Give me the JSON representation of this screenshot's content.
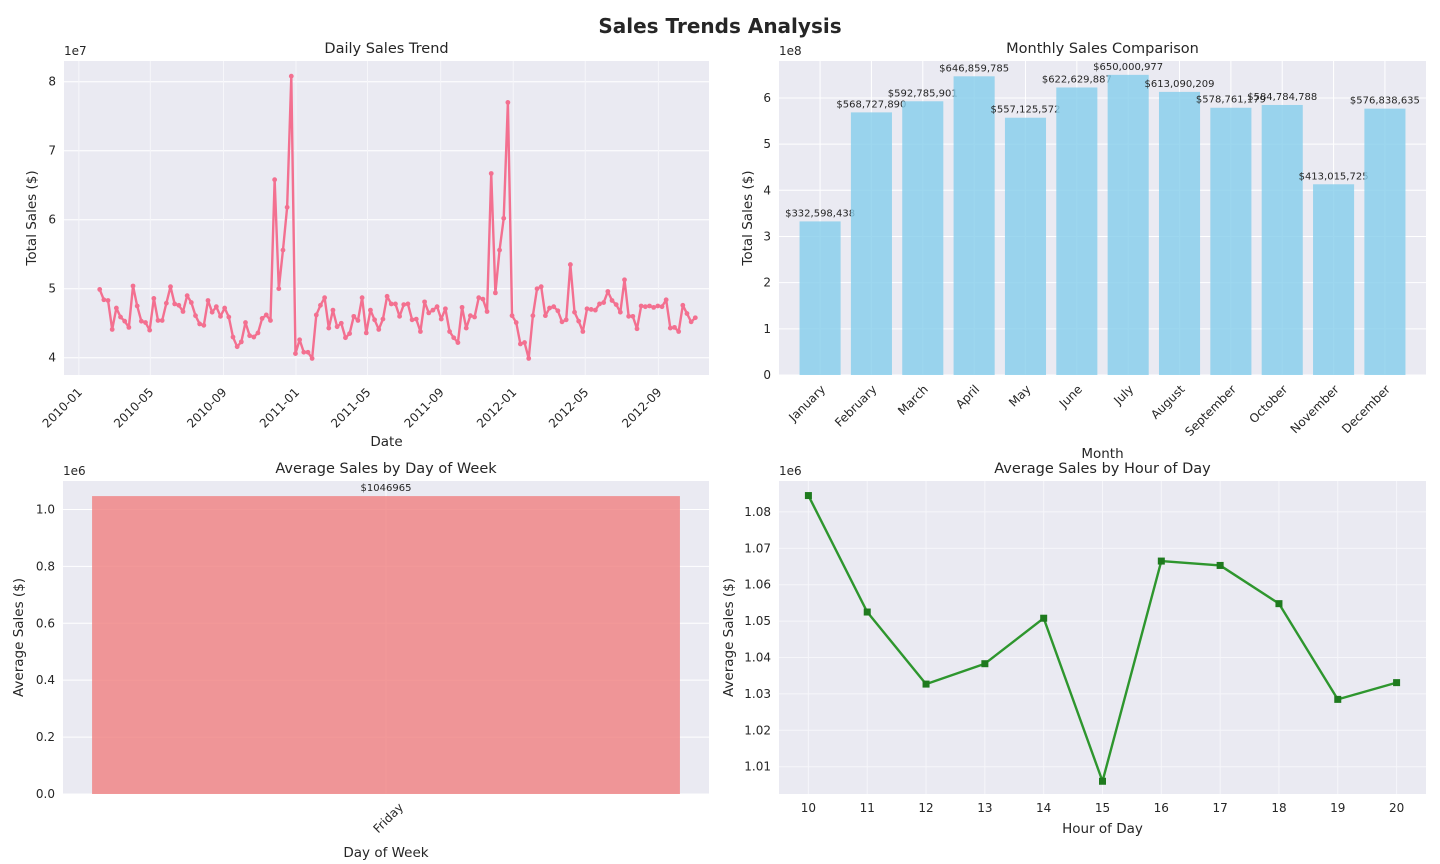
{
  "figure": {
    "title": "Sales Trends Analysis"
  },
  "chart_data": [
    {
      "id": "daily",
      "type": "line",
      "title": "Daily Sales Trend",
      "xlabel": "Date",
      "ylabel": "Total Sales ($)",
      "y_multiplier_label": "1e7",
      "y_multiplier": 10000000,
      "x_start": "2010-02-05",
      "x_step_days": 7,
      "x_ticks": [
        "2010-01",
        "2010-05",
        "2010-09",
        "2011-01",
        "2011-05",
        "2011-09",
        "2012-01",
        "2012-05",
        "2012-09"
      ],
      "xlim": [
        "2009-12-07",
        "2012-11-25"
      ],
      "y_ticks": [
        4,
        5,
        6,
        7,
        8
      ],
      "ylim": [
        3.75,
        8.3
      ],
      "values": [
        4.99,
        4.84,
        4.83,
        4.41,
        4.72,
        4.59,
        4.53,
        4.44,
        5.04,
        4.75,
        4.53,
        4.51,
        4.4,
        4.86,
        4.54,
        4.54,
        4.79,
        5.03,
        4.78,
        4.76,
        4.67,
        4.9,
        4.8,
        4.61,
        4.49,
        4.47,
        4.83,
        4.66,
        4.74,
        4.6,
        4.72,
        4.59,
        4.3,
        4.16,
        4.23,
        4.51,
        4.32,
        4.3,
        4.36,
        4.57,
        4.62,
        4.54,
        6.58,
        5.0,
        5.56,
        6.18,
        8.08,
        4.06,
        4.26,
        4.08,
        4.08,
        3.99,
        4.62,
        4.76,
        4.87,
        4.43,
        4.69,
        4.45,
        4.5,
        4.29,
        4.35,
        4.6,
        4.54,
        4.87,
        4.36,
        4.69,
        4.55,
        4.41,
        4.56,
        4.89,
        4.78,
        4.78,
        4.6,
        4.77,
        4.78,
        4.55,
        4.56,
        4.38,
        4.81,
        4.65,
        4.69,
        4.74,
        4.56,
        4.71,
        4.38,
        4.29,
        4.22,
        4.73,
        4.43,
        4.61,
        4.59,
        4.87,
        4.85,
        4.67,
        6.67,
        4.94,
        5.56,
        6.02,
        7.7,
        4.61,
        4.51,
        4.2,
        4.22,
        3.99,
        4.61,
        5.0,
        5.03,
        4.61,
        4.72,
        4.74,
        4.68,
        4.52,
        4.55,
        5.35,
        4.66,
        4.53,
        4.38,
        4.71,
        4.7,
        4.69,
        4.78,
        4.8,
        4.96,
        4.83,
        4.77,
        4.66,
        5.13,
        4.6,
        4.6,
        4.42,
        4.75,
        4.74,
        4.75,
        4.73,
        4.75,
        4.74,
        4.84,
        4.43,
        4.44,
        4.38,
        4.76,
        4.64,
        4.52,
        4.58
      ]
    },
    {
      "id": "monthly",
      "type": "bar",
      "title": "Monthly Sales Comparison",
      "xlabel": "Month",
      "ylabel": "Total Sales ($)",
      "y_multiplier_label": "1e8",
      "y_multiplier": 100000000,
      "y_ticks": [
        0,
        1,
        2,
        3,
        4,
        5,
        6
      ],
      "ylim": [
        0,
        6.8
      ],
      "categories": [
        "January",
        "February",
        "March",
        "April",
        "May",
        "June",
        "July",
        "August",
        "September",
        "October",
        "November",
        "December"
      ],
      "values": [
        332598438,
        568727890,
        592785901,
        646859785,
        557125572,
        622629887,
        650000977,
        613090209,
        578761179,
        584784788,
        413015725,
        576838635
      ],
      "data_labels": [
        "$332,598,438",
        "$568,727,890",
        "$592,785,901",
        "$646,859,785",
        "$557,125,572",
        "$622,629,887",
        "$650,000,977",
        "$613,090,209",
        "$578,761,179",
        "$584,784,788",
        "$413,015,725",
        "$576,838,635"
      ],
      "color": "#87ceeb"
    },
    {
      "id": "weekday",
      "type": "bar",
      "title": "Average Sales by Day of Week",
      "xlabel": "Day of Week",
      "ylabel": "Average Sales ($)",
      "y_multiplier_label": "1e6",
      "y_multiplier": 1000000,
      "y_ticks": [
        "0.0",
        "0.2",
        "0.4",
        "0.6",
        "0.8",
        "1.0"
      ],
      "ylim": [
        0,
        1.1
      ],
      "categories": [
        "Friday"
      ],
      "values": [
        1046965
      ],
      "data_labels": [
        "$1046965"
      ],
      "color": "#f08080"
    },
    {
      "id": "hourly",
      "type": "line",
      "title": "Average Sales by Hour of Day",
      "xlabel": "Hour of Day",
      "ylabel": "Average Sales ($)",
      "y_multiplier_label": "1e6",
      "y_multiplier": 1000000,
      "x": [
        10,
        11,
        12,
        13,
        14,
        15,
        16,
        17,
        18,
        19,
        20
      ],
      "values": [
        1.0845,
        1.0525,
        1.0327,
        1.0383,
        1.0508,
        1.006,
        1.0665,
        1.0653,
        1.0548,
        1.0285,
        1.0331
      ],
      "x_ticks": [
        10,
        11,
        12,
        13,
        14,
        15,
        16,
        17,
        18,
        19,
        20
      ],
      "xlim": [
        9.5,
        20.5
      ],
      "y_ticks": [
        "1.01",
        "1.02",
        "1.03",
        "1.04",
        "1.05",
        "1.06",
        "1.07",
        "1.08"
      ],
      "ylim": [
        1.0025,
        1.0885
      ],
      "color": "#228b22"
    }
  ]
}
